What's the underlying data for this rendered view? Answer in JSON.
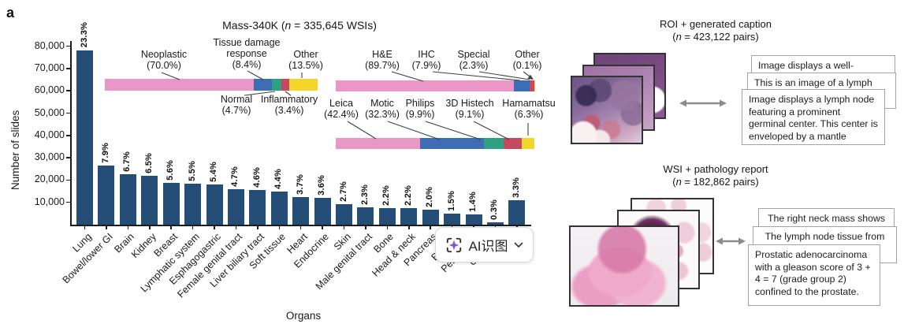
{
  "panel_label": "a",
  "colors": {
    "bar": "#244E78",
    "pink": "#E897C6",
    "blue": "#3D6EB4",
    "green": "#2FA183",
    "red": "#C64A5F",
    "yellow": "#F2D62B",
    "arrow_gray": "#8C8C8C",
    "ai_star_purple": "#7C4FE8"
  },
  "mass_header": {
    "pre": "Mass-340K (",
    "n": "n",
    "rest": " = 335,645 WSIs)"
  },
  "chart_data": [
    {
      "type": "bar",
      "title": "",
      "xlabel": "Organs",
      "ylabel": "Number of slides",
      "ylim": [
        0,
        82000
      ],
      "yticks": [
        10000,
        20000,
        30000,
        40000,
        50000,
        60000,
        70000,
        80000
      ],
      "ytick_labels": [
        "10,000",
        "20,000",
        "30,000",
        "40,000",
        "50,000",
        "60,000",
        "70,000",
        "80,000"
      ],
      "categories": [
        "Lung",
        "Bowel/lower GI",
        "Brain",
        "Kidney",
        "Breast",
        "Lymphatic system",
        "Esphagogastric",
        "Female genital tract",
        "Liver biliary tract",
        "Soft tissue",
        "Heart",
        "Endocrine",
        "Skin",
        "Male genital tract",
        "Bone",
        "Head & neck",
        "Pancreas",
        "Bladder",
        "Peritoneum",
        "Unknown",
        ""
      ],
      "values": [
        78205,
        26516,
        22488,
        21817,
        18796,
        18460,
        18125,
        15775,
        15440,
        14768,
        12419,
        12083,
        9062,
        7720,
        7384,
        7384,
        6713,
        5035,
        4699,
        1007,
        11076
      ],
      "percent_labels": [
        "23.3%",
        "7.9%",
        "6.7%",
        "6.5%",
        "5.6%",
        "5.5%",
        "5.4%",
        "4.7%",
        "4.6%",
        "4.4%",
        "3.7%",
        "3.6%",
        "2.7%",
        "2.3%",
        "2.2%",
        "2.2%",
        "2.0%",
        "1.5%",
        "1.4%",
        "0.3%",
        "3.3%"
      ],
      "grid": false,
      "legend": false
    },
    {
      "type": "stacked-bar-horizontal",
      "name": "tissue-type-composition",
      "segments": [
        {
          "label": "Neoplastic",
          "pct": 70.0,
          "pct_label": "(70.0%)",
          "color": "pink"
        },
        {
          "label": "Tissue damage response",
          "pct": 8.4,
          "pct_label": "(8.4%)",
          "color": "blue"
        },
        {
          "label": "Normal",
          "pct": 4.7,
          "pct_label": "(4.7%)",
          "color": "green"
        },
        {
          "label": "Inflammatory",
          "pct": 3.4,
          "pct_label": "(3.4%)",
          "color": "red"
        },
        {
          "label": "Other",
          "pct": 13.5,
          "pct_label": "(13.5%)",
          "color": "yellow"
        }
      ]
    },
    {
      "type": "stacked-bar-horizontal",
      "name": "stain-composition",
      "segments": [
        {
          "label": "H&E",
          "pct": 89.7,
          "pct_label": "(89.7%)",
          "color": "pink"
        },
        {
          "label": "IHC",
          "pct": 7.9,
          "pct_label": "(7.9%)",
          "color": "blue"
        },
        {
          "label": "Special",
          "pct": 2.3,
          "pct_label": "(2.3%)",
          "color": "red"
        },
        {
          "label": "Other",
          "pct": 0.1,
          "pct_label": "(0.1%)",
          "color": "yellow"
        }
      ]
    },
    {
      "type": "stacked-bar-horizontal",
      "name": "scanner-composition",
      "segments": [
        {
          "label": "Leica",
          "pct": 42.4,
          "pct_label": "(42.4%)",
          "color": "pink"
        },
        {
          "label": "Motic",
          "pct": 32.3,
          "pct_label": "(32.3%)",
          "color": "blue"
        },
        {
          "label": "Philips",
          "pct": 9.9,
          "pct_label": "(9.9%)",
          "color": "green"
        },
        {
          "label": "3D Histech",
          "pct": 9.1,
          "pct_label": "(9.1%)",
          "color": "red"
        },
        {
          "label": "Hamamatsu",
          "pct": 6.3,
          "pct_label": "(6.3%)",
          "color": "yellow"
        }
      ]
    }
  ],
  "roi_panel": {
    "title": "ROI + generated caption",
    "subtitle_parts": {
      "pre": "(",
      "n": "n",
      "rest": " = 423,122 pairs)"
    },
    "captions": [
      "Image displays a well-",
      "This is an image of a lymph",
      "Image displays a lymph node featuring a prominent germinal center. This center is enveloped by a mantle zone..."
    ]
  },
  "wsi_panel": {
    "title": "WSI + pathology report",
    "subtitle_parts": {
      "pre": "(",
      "n": "n",
      "rest": " = 182,862 pairs)"
    },
    "reports": [
      "The right neck mass shows",
      "The lymph node tissue from",
      "Prostatic adenocarcinoma with a gleason score of 3 + 4 = 7 (grade group 2) confined to the prostate."
    ]
  },
  "overlay_button": {
    "label": "AI识图",
    "icon": "ai-scan-sparkle-icon"
  }
}
